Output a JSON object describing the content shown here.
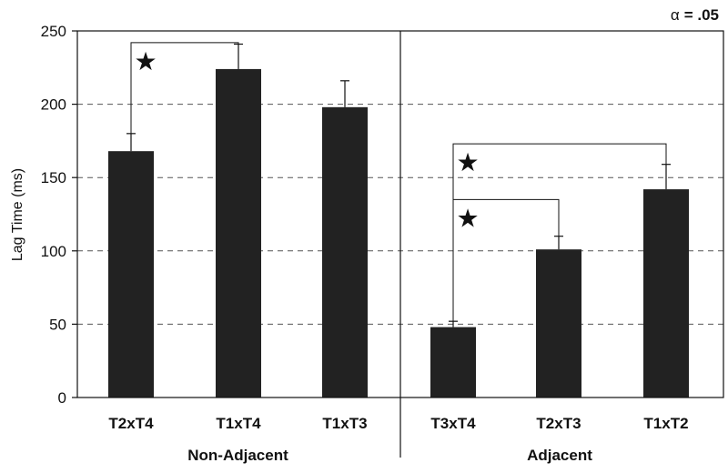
{
  "chart_data": {
    "type": "bar",
    "ylabel": "Lag Time (ms)",
    "ylim": [
      0,
      250
    ],
    "yticks": [
      "0",
      "50",
      "100",
      "150",
      "200",
      "250"
    ],
    "grid": "horizontal dashed",
    "annotation": {
      "alpha_symbol": "α",
      "alpha_value": "= .05"
    },
    "groups": [
      {
        "name": "Non-Adjacent",
        "categories": [
          "T2xT4",
          "T1xT4",
          "T1xT3"
        ],
        "values": [
          168,
          224,
          198
        ],
        "errors": [
          12,
          17,
          18
        ],
        "significance": [
          {
            "between": [
              "T2xT4",
              "T1xT4"
            ],
            "symbol": "★"
          }
        ]
      },
      {
        "name": "Adjacent",
        "categories": [
          "T3xT4",
          "T2xT3",
          "T1xT2"
        ],
        "values": [
          48,
          101,
          142
        ],
        "errors": [
          4,
          9,
          17
        ],
        "significance": [
          {
            "between": [
              "T3xT4",
              "T1xT2"
            ],
            "symbol": "★"
          },
          {
            "between": [
              "T3xT4",
              "T2xT3"
            ],
            "symbol": "★"
          }
        ]
      }
    ]
  }
}
